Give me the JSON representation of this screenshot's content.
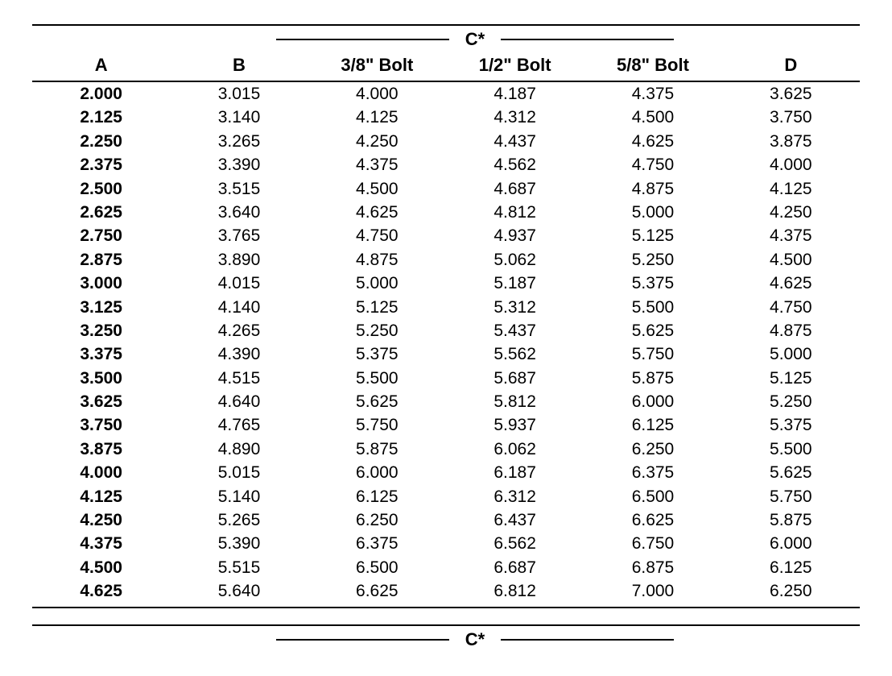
{
  "table": {
    "group_header": "C*",
    "columns": [
      "A",
      "B",
      "3/8\" Bolt",
      "1/2\" Bolt",
      "5/8\" Bolt",
      "D"
    ],
    "rows": [
      [
        "2.000",
        "3.015",
        "4.000",
        "4.187",
        "4.375",
        "3.625"
      ],
      [
        "2.125",
        "3.140",
        "4.125",
        "4.312",
        "4.500",
        "3.750"
      ],
      [
        "2.250",
        "3.265",
        "4.250",
        "4.437",
        "4.625",
        "3.875"
      ],
      [
        "2.375",
        "3.390",
        "4.375",
        "4.562",
        "4.750",
        "4.000"
      ],
      [
        "2.500",
        "3.515",
        "4.500",
        "4.687",
        "4.875",
        "4.125"
      ],
      [
        "2.625",
        "3.640",
        "4.625",
        "4.812",
        "5.000",
        "4.250"
      ],
      [
        "2.750",
        "3.765",
        "4.750",
        "4.937",
        "5.125",
        "4.375"
      ],
      [
        "2.875",
        "3.890",
        "4.875",
        "5.062",
        "5.250",
        "4.500"
      ],
      [
        "3.000",
        "4.015",
        "5.000",
        "5.187",
        "5.375",
        "4.625"
      ],
      [
        "3.125",
        "4.140",
        "5.125",
        "5.312",
        "5.500",
        "4.750"
      ],
      [
        "3.250",
        "4.265",
        "5.250",
        "5.437",
        "5.625",
        "4.875"
      ],
      [
        "3.375",
        "4.390",
        "5.375",
        "5.562",
        "5.750",
        "5.000"
      ],
      [
        "3.500",
        "4.515",
        "5.500",
        "5.687",
        "5.875",
        "5.125"
      ],
      [
        "3.625",
        "4.640",
        "5.625",
        "5.812",
        "6.000",
        "5.250"
      ],
      [
        "3.750",
        "4.765",
        "5.750",
        "5.937",
        "6.125",
        "5.375"
      ],
      [
        "3.875",
        "4.890",
        "5.875",
        "6.062",
        "6.250",
        "5.500"
      ],
      [
        "4.000",
        "5.015",
        "6.000",
        "6.187",
        "6.375",
        "5.625"
      ],
      [
        "4.125",
        "5.140",
        "6.125",
        "6.312",
        "6.500",
        "5.750"
      ],
      [
        "4.250",
        "5.265",
        "6.250",
        "6.437",
        "6.625",
        "5.875"
      ],
      [
        "4.375",
        "5.390",
        "6.375",
        "6.562",
        "6.750",
        "6.000"
      ],
      [
        "4.500",
        "5.515",
        "6.500",
        "6.687",
        "6.875",
        "6.125"
      ],
      [
        "4.625",
        "5.640",
        "6.625",
        "6.812",
        "7.000",
        "6.250"
      ]
    ]
  },
  "footer_group_header": "C*"
}
